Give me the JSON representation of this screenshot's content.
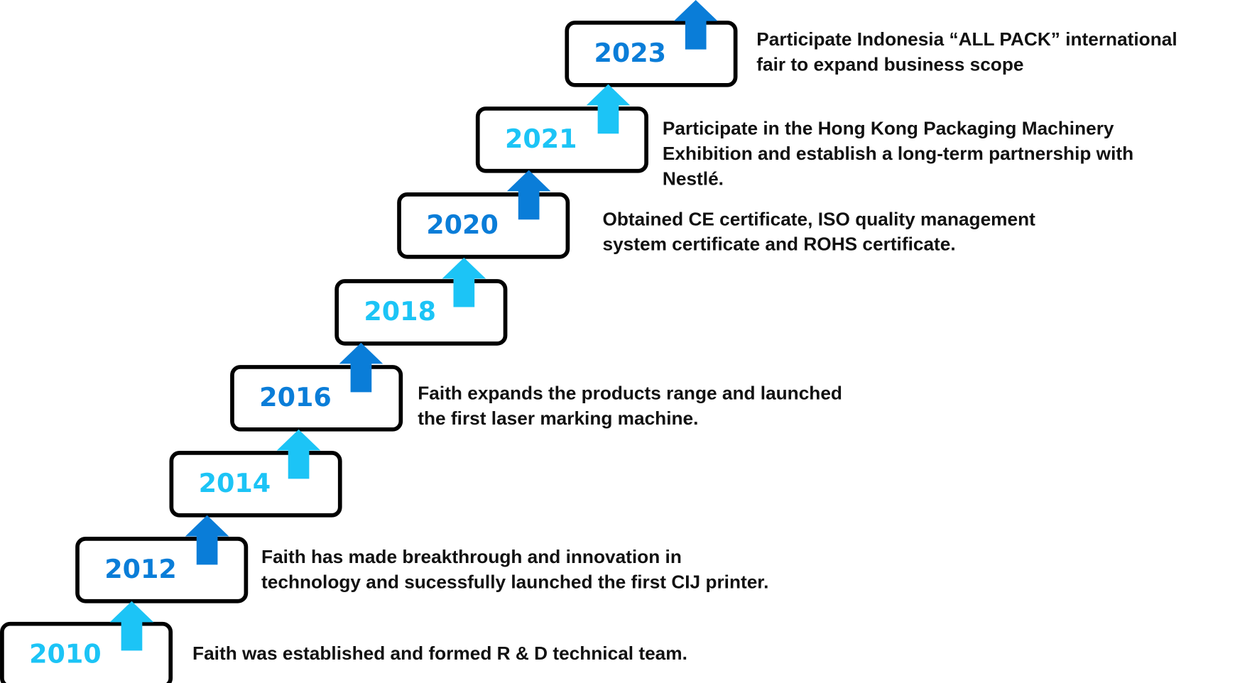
{
  "milestones": [
    {
      "year": "2010",
      "description": [
        "Faith was established and formed R & D technical team."
      ]
    },
    {
      "year": "2012",
      "description": [
        "Faith has made breakthrough and innovation in",
        "technology and sucessfully launched the first CIJ printer."
      ]
    },
    {
      "year": "2014"
    },
    {
      "year": "2016",
      "description": [
        "Faith expands the products range and launched",
        "the first laser marking machine."
      ]
    },
    {
      "year": "2018"
    },
    {
      "year": "2020",
      "description": [
        "Obtained CE certificate, ISO quality management",
        "system certificate and ROHS certificate."
      ]
    },
    {
      "year": "2021",
      "description": [
        "Participate in the Hong Kong Packaging Machinery",
        "Exhibition and establish a long-term partnership with",
        "Nestlé."
      ]
    },
    {
      "year": "2023",
      "description": [
        "Participate Indonesia “ALL PACK” international",
        "fair to expand business scope"
      ]
    }
  ]
}
